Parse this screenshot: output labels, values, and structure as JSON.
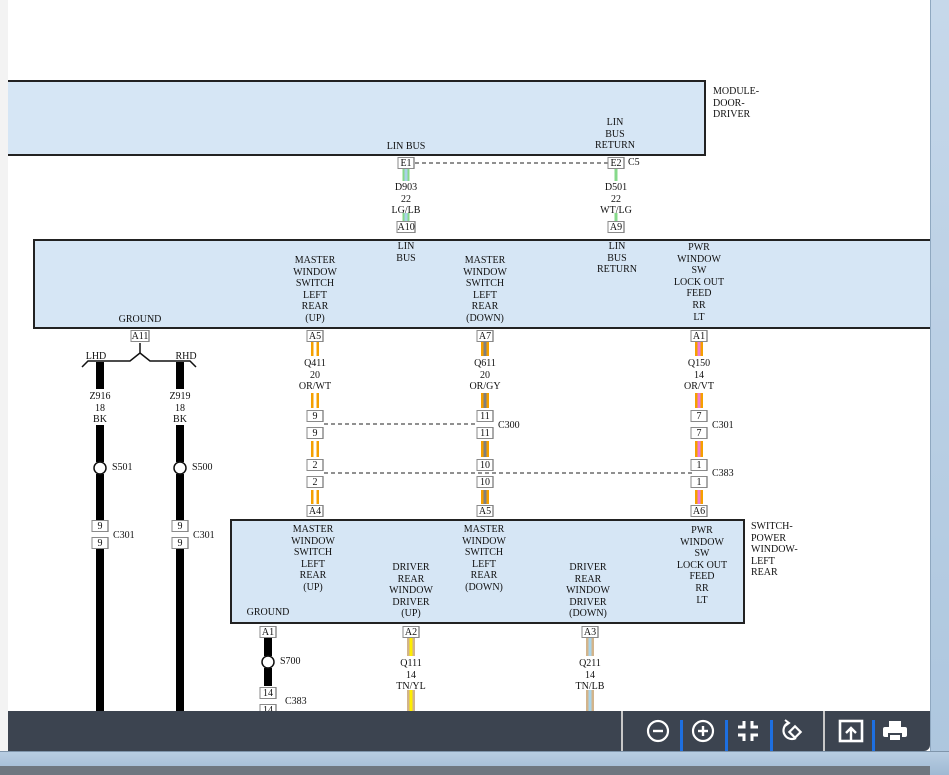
{
  "colors": {
    "module_fill": "#d6e6f5",
    "toolbar_bg": "#3c4450",
    "toolbar_divider": "#1d6fe0",
    "wire": {
      "BK": "#000000",
      "OR": "#f5a000",
      "WT": "#ffffff",
      "GY": "#808080",
      "VT": "#ee7ad8",
      "LG": "#86d98a",
      "LB": "#a9d3e8",
      "TN": "#d2b48c",
      "YL": "#ffee00"
    }
  },
  "module_door_driver": {
    "name": "MODULE-\nDOOR-\nDRIVER",
    "pin_lin_bus": "LIN BUS",
    "pin_lin_bus_return": "LIN\nBUS\nRETURN",
    "connector": "C5",
    "cavities": [
      "E1",
      "E2"
    ]
  },
  "wires_top": [
    {
      "circuit": "D903",
      "gauge": "22",
      "color": "LG/LB"
    },
    {
      "circuit": "D501",
      "gauge": "22",
      "color": "WT/LG"
    }
  ],
  "master_switch": {
    "pins": {
      "lin_bus": "LIN\nBUS",
      "lin_bus_return": "LIN\nBUS\nRETURN",
      "ground": "GROUND",
      "up": "MASTER\nWINDOW\nSWITCH\nLEFT\nREAR\n(UP)",
      "down": "MASTER\nWINDOW\nSWITCH\nLEFT\nREAR\n(DOWN)",
      "lockout": "PWR\nWINDOW\nSW\nLOCK OUT\nFEED\nRR\nLT"
    },
    "cavities": {
      "lin_bus": "A10",
      "lin_bus_return": "A9",
      "ground": "A11",
      "up": "A5",
      "down": "A7",
      "lockout": "A1"
    }
  },
  "ground_branch": {
    "lhd": {
      "label": "LHD",
      "circuit": "Z916",
      "gauge": "18",
      "color": "BK",
      "splice": "S501",
      "cavity": "9",
      "connector": "C301"
    },
    "rhd": {
      "label": "RHD",
      "circuit": "Z919",
      "gauge": "18",
      "color": "BK",
      "splice": "S500",
      "cavity": "9",
      "connector": "C301"
    }
  },
  "wires_mid": [
    {
      "circuit": "Q411",
      "gauge": "20",
      "color": "OR/WT",
      "c1": "9",
      "c2": "2",
      "end": "A4"
    },
    {
      "circuit": "Q611",
      "gauge": "20",
      "color": "OR/GY",
      "c1": "11",
      "c2": "10",
      "end": "A5"
    },
    {
      "circuit": "Q150",
      "gauge": "14",
      "color": "OR/VT",
      "c1": "7",
      "c2": "1",
      "end": "A6"
    }
  ],
  "inline_connectors": {
    "c300": "C300",
    "c301": "C301",
    "c383": "C383"
  },
  "switch_left_rear": {
    "name": "SWITCH-\nPOWER\nWINDOW-\nLEFT\nREAR",
    "pins": {
      "ground": "GROUND",
      "up": "MASTER\nWINDOW\nSWITCH\nLEFT\nREAR\n(UP)",
      "driver_up": "DRIVER\nREAR\nWINDOW\nDRIVER\n(UP)",
      "down": "MASTER\nWINDOW\nSWITCH\nLEFT\nREAR\n(DOWN)",
      "driver_down": "DRIVER\nREAR\nWINDOW\nDRIVER\n(DOWN)",
      "lockout": "PWR\nWINDOW\nSW\nLOCK OUT\nFEED\nRR\nLT"
    },
    "cavities": {
      "ground": "A1",
      "driver_up": "A2",
      "driver_down": "A3"
    }
  },
  "wires_bottom": {
    "ground": {
      "splice": "S700",
      "cavity": "14",
      "connector": "C383"
    },
    "up": {
      "circuit": "Q111",
      "gauge": "14",
      "color": "TN/YL"
    },
    "down": {
      "circuit": "Q211",
      "gauge": "14",
      "color": "TN/LB"
    }
  },
  "toolbar": {
    "zoom_out": "zoom-out",
    "zoom_in": "zoom-in",
    "fit": "fit-to-page",
    "rotate": "rotate",
    "export": "export",
    "print": "print"
  }
}
